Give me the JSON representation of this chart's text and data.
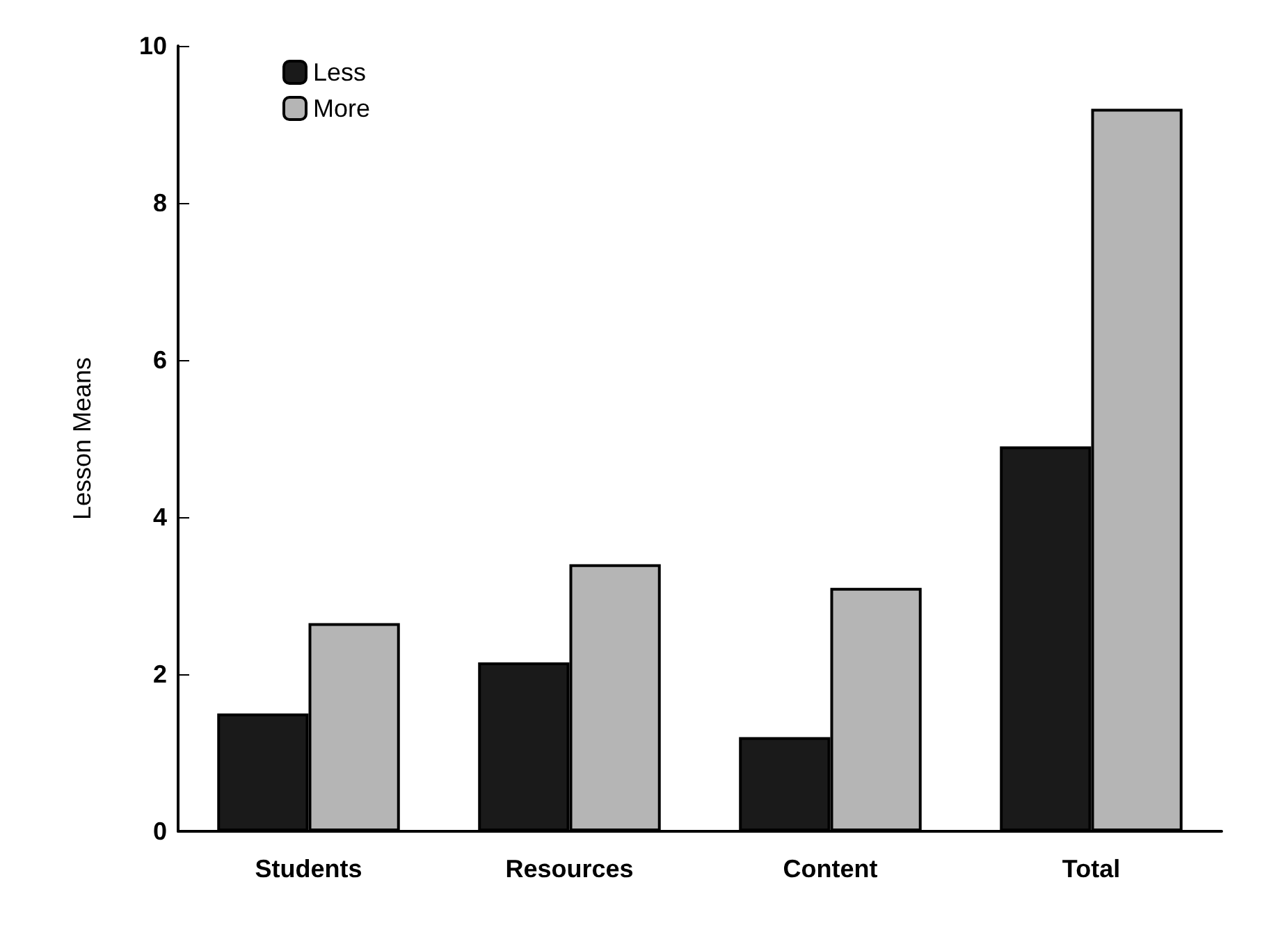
{
  "chart_data": {
    "type": "bar",
    "ylabel": "Lesson Means",
    "categories": [
      "Students",
      "Resources",
      "Content",
      "Total"
    ],
    "series": [
      {
        "name": "Less",
        "color": "#1a1a1a",
        "values": [
          1.5,
          2.15,
          1.2,
          4.9
        ]
      },
      {
        "name": "More",
        "color": "#b5b5b5",
        "values": [
          2.65,
          3.4,
          3.1,
          9.2
        ]
      }
    ],
    "ylim": [
      0,
      10
    ],
    "yticks": [
      0,
      2,
      4,
      6,
      8,
      10
    ],
    "grid": false,
    "legend": "top left"
  }
}
